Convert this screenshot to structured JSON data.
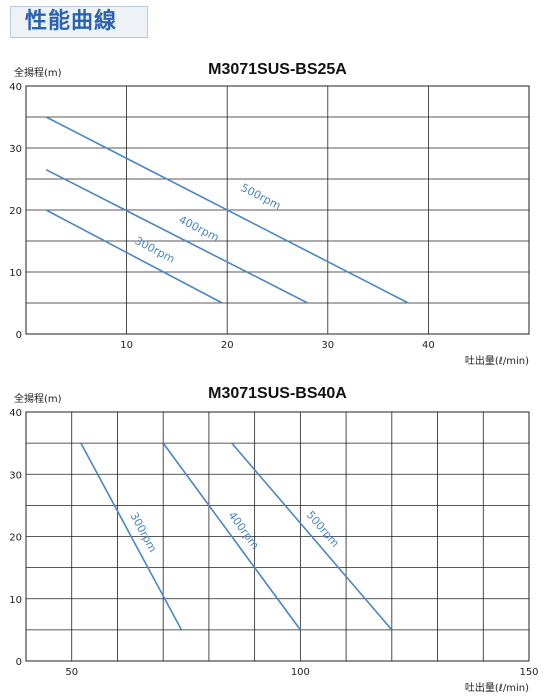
{
  "page": {
    "section_title": "性能曲線"
  },
  "colors": {
    "accent": "#2a64b0",
    "curve": "#4a86c5",
    "grid": "#222222",
    "title_box_bg": "#eef2f7",
    "title_box_border": "#b9c9dd"
  },
  "chart_data": [
    {
      "type": "line",
      "title": "M3071SUS-BS25A",
      "ylabel": "全揚程(m)",
      "xlabel": "吐出量(ℓ/min)",
      "xlim": [
        0,
        50
      ],
      "ylim": [
        0,
        40
      ],
      "xticks": [
        10,
        20,
        30,
        40
      ],
      "yticks": [
        0,
        10,
        20,
        30,
        40
      ],
      "grid": true,
      "series": [
        {
          "name": "500rpm",
          "x": [
            2,
            38
          ],
          "y": [
            35,
            5
          ]
        },
        {
          "name": "400rpm",
          "x": [
            2,
            28
          ],
          "y": [
            26.5,
            5
          ]
        },
        {
          "name": "300rpm",
          "x": [
            2,
            19.5
          ],
          "y": [
            20,
            5
          ]
        }
      ]
    },
    {
      "type": "line",
      "title": "M3071SUS-BS40A",
      "ylabel": "全揚程(m)",
      "xlabel": "吐出量(ℓ/min)",
      "xlim": [
        40,
        150
      ],
      "ylim": [
        0,
        40
      ],
      "xticks": [
        50,
        100,
        150
      ],
      "yticks": [
        0,
        10,
        20,
        30,
        40
      ],
      "grid": true,
      "series": [
        {
          "name": "300rpm",
          "x": [
            52,
            74
          ],
          "y": [
            35,
            5
          ]
        },
        {
          "name": "400rpm",
          "x": [
            70,
            100
          ],
          "y": [
            35,
            5
          ]
        },
        {
          "name": "500rpm",
          "x": [
            85,
            120
          ],
          "y": [
            35,
            5
          ]
        }
      ]
    }
  ]
}
